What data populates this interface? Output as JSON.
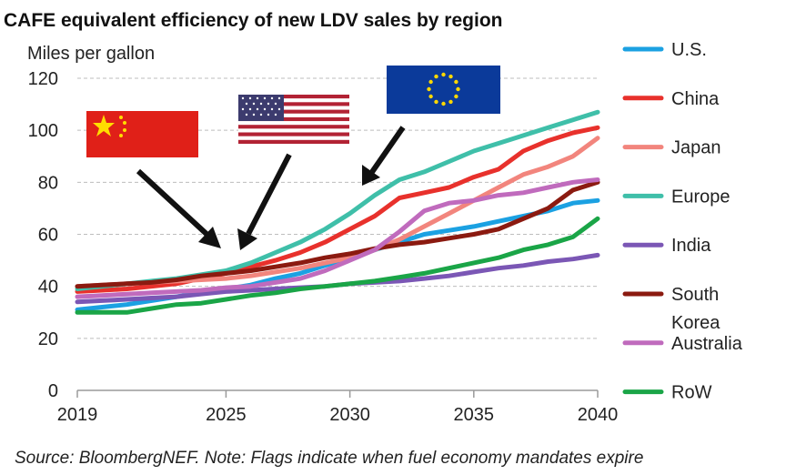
{
  "chart_data": {
    "type": "line",
    "title": "CAFE equivalent efficiency of new LDV sales by region",
    "ylabel": "Miles per gallon",
    "xlabel": "",
    "ylim": [
      0,
      120
    ],
    "xlim": [
      2019,
      2040
    ],
    "yticks": [
      0,
      20,
      40,
      60,
      80,
      100,
      120
    ],
    "xticks": [
      2019,
      2025,
      2030,
      2035,
      2040
    ],
    "grid": "horizontal dashed",
    "legend_position": "right",
    "x": [
      2019,
      2020,
      2021,
      2022,
      2023,
      2024,
      2025,
      2026,
      2027,
      2028,
      2029,
      2030,
      2031,
      2032,
      2033,
      2034,
      2035,
      2036,
      2037,
      2038,
      2039,
      2040
    ],
    "series": [
      {
        "name": "U.S.",
        "color": "#1ba1e2",
        "values": [
          31,
          32,
          33,
          34.5,
          36,
          37.5,
          39,
          40.5,
          43,
          45,
          48,
          51,
          54,
          57,
          60,
          61.5,
          63,
          65,
          67,
          69,
          72,
          73
        ]
      },
      {
        "name": "China",
        "color": "#e8312c",
        "values": [
          38,
          38.5,
          39,
          40,
          41,
          43,
          45,
          47.5,
          50,
          53,
          57,
          62,
          67,
          74,
          76,
          78,
          82,
          85,
          92,
          96,
          99,
          101
        ]
      },
      {
        "name": "Japan",
        "color": "#f2857d",
        "values": [
          40,
          40.5,
          41,
          41.5,
          42,
          42.5,
          43,
          44,
          45.5,
          47,
          49,
          51,
          54,
          58,
          63,
          68,
          73,
          78,
          83,
          86,
          90,
          97
        ]
      },
      {
        "name": "Europe",
        "color": "#3fbfa9",
        "values": [
          39,
          40,
          41,
          42,
          43,
          44.5,
          46,
          49,
          53,
          57,
          62,
          68,
          75,
          81,
          84,
          88,
          92,
          95,
          98,
          101,
          104,
          107
        ]
      },
      {
        "name": "India",
        "color": "#7b57b5",
        "values": [
          34,
          34.5,
          35,
          35.5,
          36,
          37,
          38,
          38.5,
          39,
          39.5,
          40,
          41,
          41.5,
          42,
          43,
          44,
          45.5,
          47,
          48,
          49.5,
          50.5,
          52
        ]
      },
      {
        "name": "South Korea",
        "color": "#8b1a10",
        "values": [
          40,
          40.5,
          41,
          41.5,
          42.5,
          44,
          45,
          46,
          47.5,
          49,
          51,
          52.5,
          54.5,
          56,
          57,
          58.5,
          60,
          62,
          66,
          70,
          77,
          80
        ]
      },
      {
        "name": "Australia",
        "color": "#c06bbd",
        "values": [
          36,
          36.5,
          37,
          37.5,
          38,
          38.5,
          39.5,
          40,
          41.5,
          43,
          46,
          50,
          54,
          61,
          69,
          72,
          73,
          75,
          76,
          78,
          80,
          81
        ]
      },
      {
        "name": "RoW",
        "color": "#1aa547",
        "values": [
          30,
          30,
          30,
          31.5,
          33,
          33.5,
          35,
          36.5,
          37.5,
          39,
          40,
          41,
          42,
          43.5,
          45,
          47,
          49,
          51,
          54,
          56,
          59,
          66
        ]
      }
    ],
    "flags": [
      {
        "region": "China"
      },
      {
        "region": "U.S."
      },
      {
        "region": "Europe"
      }
    ]
  },
  "footer": {
    "source": "Source: BloombergNEF. Note: Flags indicate when fuel economy mandates expire"
  }
}
